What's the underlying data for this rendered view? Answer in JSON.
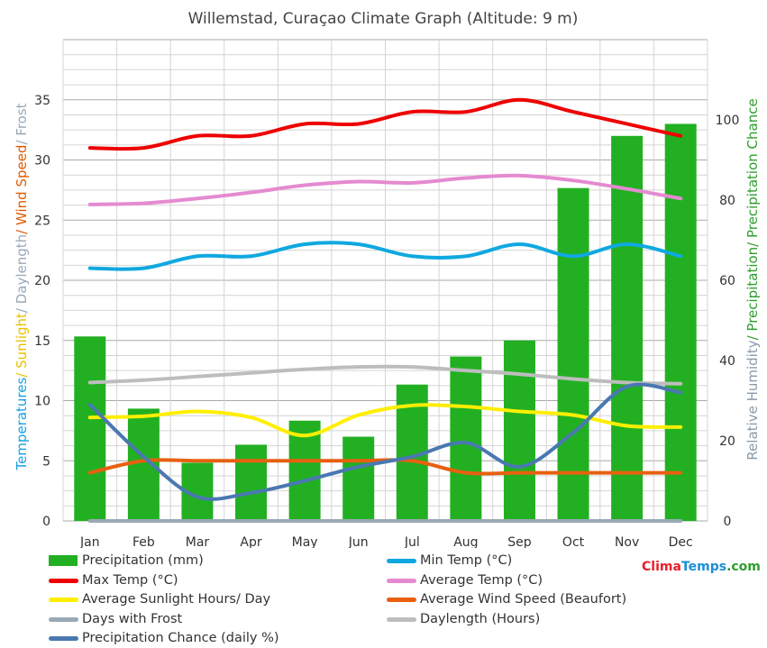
{
  "title": "Willemstad, Curaçao Climate Graph (Altitude: 9 m)",
  "brand": {
    "part1": "Clima",
    "part2": "Temps",
    "part3": ".com",
    "color1": "#e8202a",
    "color2": "#1a8fd6",
    "color3": "#2e9e2e"
  },
  "left_axis_label": [
    {
      "text": "Temperatures",
      "color": "#1aa0e0"
    },
    {
      "text": "/ Sunlight",
      "color": "#e6c200"
    },
    {
      "text": "/ Daylength",
      "color": "#9aa8b8"
    },
    {
      "text": "/ Wind Speed",
      "color": "#e05a00"
    },
    {
      "text": "/ Frost",
      "color": "#9aa8b8"
    }
  ],
  "right_axis_label": [
    {
      "text": "Relative Humidity",
      "color": "#8a9aaa"
    },
    {
      "text": "/ Precipitation",
      "color": "#2e9e2e"
    },
    {
      "text": "/ Precipitation Chance",
      "color": "#2e9e2e"
    }
  ],
  "chart_data": {
    "type": "bar",
    "categories": [
      "Jan",
      "Feb",
      "Mar",
      "Apr",
      "May",
      "Jun",
      "Jul",
      "Aug",
      "Sep",
      "Oct",
      "Nov",
      "Dec"
    ],
    "ylim_left": [
      0,
      40
    ],
    "ylim_right": [
      0,
      120
    ],
    "left_ticks": [
      0,
      5,
      10,
      15,
      20,
      25,
      30,
      35
    ],
    "right_ticks": [
      0,
      20,
      40,
      60,
      80,
      100
    ],
    "grid": true,
    "bars": {
      "name": "Precipitation (mm)",
      "color": "#22b022",
      "axis": "right",
      "values": [
        46,
        28,
        14.5,
        19,
        25,
        21,
        34,
        41,
        45,
        83,
        96,
        99
      ]
    },
    "series": [
      {
        "name": "Max Temp (°C)",
        "color": "#ee0000",
        "axis": "left",
        "values": [
          31,
          31,
          32,
          32,
          33,
          33,
          34,
          34,
          35,
          34,
          33,
          32
        ]
      },
      {
        "name": "Min Temp (°C)",
        "color": "#10a8e0",
        "axis": "left",
        "values": [
          21,
          21,
          22,
          22,
          23,
          23,
          22,
          22,
          23,
          22,
          23,
          22
        ]
      },
      {
        "name": "Average Temp (°C)",
        "color": "#e58ad0",
        "axis": "left",
        "values": [
          26.3,
          26.4,
          26.8,
          27.3,
          27.9,
          28.2,
          28.1,
          28.5,
          28.7,
          28.3,
          27.6,
          26.8
        ]
      },
      {
        "name": "Average Sunlight Hours/ Day",
        "color": "#ffee00",
        "axis": "left",
        "values": [
          8.6,
          8.7,
          9.1,
          8.6,
          7.1,
          8.8,
          9.6,
          9.5,
          9.1,
          8.8,
          7.9,
          7.8
        ]
      },
      {
        "name": "Average Wind Speed (Beaufort)",
        "color": "#e86010",
        "axis": "left",
        "values": [
          4,
          5,
          5,
          5,
          5,
          5,
          5,
          4,
          4,
          4,
          4,
          4
        ]
      },
      {
        "name": "Days with Frost",
        "color": "#9aa9b5",
        "axis": "left",
        "values": [
          0,
          0,
          0,
          0,
          0,
          0,
          0,
          0,
          0,
          0,
          0,
          0
        ]
      },
      {
        "name": "Daylength (Hours)",
        "color": "#bdbdbd",
        "axis": "left",
        "values": [
          11.5,
          11.7,
          12.0,
          12.3,
          12.6,
          12.8,
          12.8,
          12.5,
          12.2,
          11.8,
          11.5,
          11.4
        ]
      },
      {
        "name": "Precipitation Chance (daily %)",
        "color": "#4a78b0",
        "axis": "right",
        "values": [
          29,
          16,
          6,
          7,
          10,
          13.5,
          16,
          19.5,
          13.5,
          22,
          33.5,
          32
        ]
      }
    ],
    "legend_position": "bottom"
  },
  "legend": [
    {
      "label": "Precipitation (mm)",
      "color": "#22b022",
      "kind": "box"
    },
    {
      "label": "Min Temp (°C)",
      "color": "#10a8e0",
      "kind": "line"
    },
    {
      "label": "Max Temp (°C)",
      "color": "#ee0000",
      "kind": "line"
    },
    {
      "label": "Average Temp (°C)",
      "color": "#e58ad0",
      "kind": "line"
    },
    {
      "label": "Average Sunlight Hours/ Day",
      "color": "#ffee00",
      "kind": "line"
    },
    {
      "label": "Average Wind Speed (Beaufort)",
      "color": "#e86010",
      "kind": "line"
    },
    {
      "label": "Days with Frost",
      "color": "#9aa9b5",
      "kind": "line"
    },
    {
      "label": "Daylength (Hours)",
      "color": "#bdbdbd",
      "kind": "line"
    },
    {
      "label": "Precipitation Chance (daily %)",
      "color": "#4a78b0",
      "kind": "line"
    }
  ]
}
